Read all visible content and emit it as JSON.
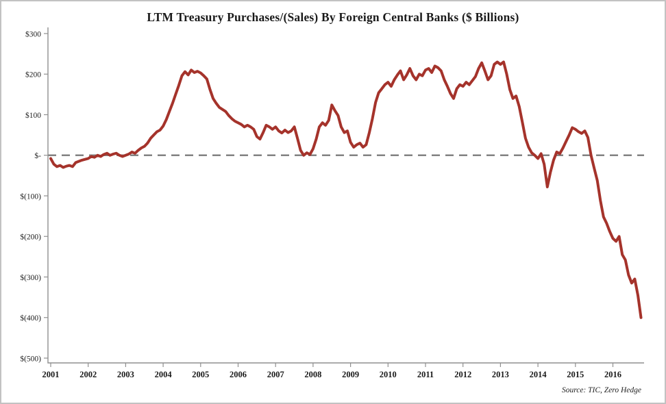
{
  "chart": {
    "title": "LTM Treasury Purchases/(Sales) By Foreign Central Banks ($ Billions)",
    "source": "Source: TIC, Zero Hedge"
  },
  "chart_data": {
    "type": "line",
    "title": "LTM Treasury Purchases/(Sales) By Foreign Central Banks ($ Billions)",
    "source": "Source: TIC, Zero Hedge",
    "xlabel": "",
    "ylabel": "",
    "grid": false,
    "legend": false,
    "ylim": [
      -500,
      300
    ],
    "xlim": [
      2001,
      2016.9
    ],
    "axis_color": "#8f8f8f",
    "zero_line": {
      "value": 0,
      "style": "dashed",
      "color": "#828282"
    },
    "y_ticks": [
      {
        "label": "$300",
        "value": 300
      },
      {
        "label": "$200",
        "value": 200
      },
      {
        "label": "$100",
        "value": 100
      },
      {
        "label": "$-",
        "value": 0
      },
      {
        "label": "$(100)",
        "value": -100
      },
      {
        "label": "$(200)",
        "value": -200
      },
      {
        "label": "$(300)",
        "value": -300
      },
      {
        "label": "$(400)",
        "value": -400
      },
      {
        "label": "$(500)",
        "value": -500
      }
    ],
    "x_ticks": [
      2001,
      2002,
      2003,
      2004,
      2005,
      2006,
      2007,
      2008,
      2009,
      2010,
      2011,
      2012,
      2013,
      2014,
      2015,
      2016
    ],
    "series": [
      {
        "name": "LTM Treasury Purchases/(Sales) by Foreign Central Banks",
        "color": "#A5332B",
        "start_year": 2001,
        "frequency": "monthly",
        "values": [
          -8,
          -22,
          -28,
          -25,
          -30,
          -27,
          -25,
          -28,
          -18,
          -15,
          -12,
          -10,
          -8,
          -3,
          -5,
          0,
          -3,
          2,
          5,
          0,
          3,
          5,
          0,
          -3,
          0,
          3,
          8,
          5,
          12,
          18,
          22,
          30,
          42,
          50,
          58,
          62,
          72,
          88,
          108,
          128,
          150,
          172,
          196,
          206,
          198,
          210,
          204,
          207,
          203,
          196,
          188,
          162,
          140,
          128,
          118,
          113,
          108,
          98,
          90,
          84,
          80,
          76,
          70,
          74,
          70,
          64,
          46,
          40,
          56,
          74,
          70,
          64,
          70,
          60,
          55,
          62,
          56,
          60,
          70,
          42,
          12,
          0,
          6,
          2,
          16,
          40,
          70,
          80,
          74,
          86,
          124,
          110,
          98,
          70,
          56,
          60,
          32,
          20,
          26,
          30,
          20,
          26,
          56,
          90,
          130,
          154,
          164,
          174,
          180,
          170,
          186,
          198,
          208,
          186,
          198,
          214,
          196,
          186,
          200,
          196,
          210,
          214,
          204,
          220,
          216,
          208,
          186,
          170,
          152,
          140,
          164,
          174,
          170,
          180,
          174,
          184,
          194,
          214,
          228,
          208,
          186,
          196,
          224,
          230,
          224,
          230,
          200,
          162,
          140,
          146,
          120,
          82,
          42,
          20,
          6,
          0,
          -8,
          4,
          -22,
          -78,
          -42,
          -12,
          8,
          4,
          18,
          34,
          50,
          68,
          64,
          58,
          54,
          60,
          44,
          0,
          -32,
          -62,
          -112,
          -152,
          -168,
          -188,
          -205,
          -212,
          -200,
          -245,
          -258,
          -295,
          -315,
          -305,
          -345,
          -400
        ]
      }
    ]
  }
}
